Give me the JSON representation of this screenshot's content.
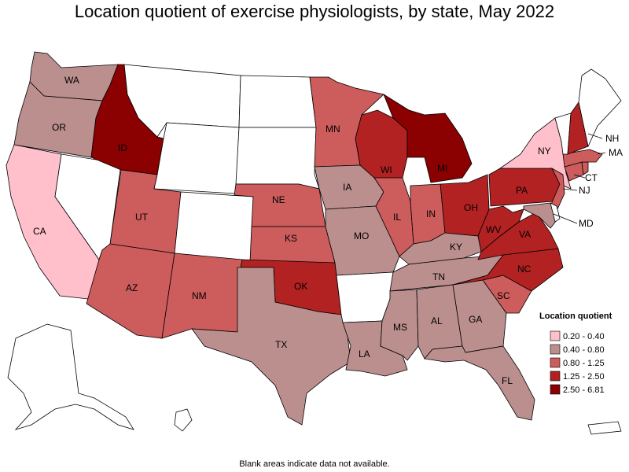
{
  "title": "Location quotient of exercise physiologists, by state, May 2022",
  "footnote": "Blank areas indicate data not available.",
  "legend": {
    "title": "Location quotient",
    "classes": [
      {
        "label": "0.20 - 0.40",
        "color": "#ffc0cb"
      },
      {
        "label": "0.40 - 0.80",
        "color": "#bc8f8f"
      },
      {
        "label": "0.80 - 1.25",
        "color": "#cd5c5c"
      },
      {
        "label": "1.25 - 2.50",
        "color": "#b22222"
      },
      {
        "label": "2.50 - 6.81",
        "color": "#8b0000"
      }
    ]
  },
  "blank_color": "#ffffff",
  "states": [
    {
      "code": "WA",
      "cls": 1
    },
    {
      "code": "OR",
      "cls": 1
    },
    {
      "code": "CA",
      "cls": 0
    },
    {
      "code": "NV",
      "cls": null
    },
    {
      "code": "ID",
      "cls": 4
    },
    {
      "code": "MT",
      "cls": null
    },
    {
      "code": "WY",
      "cls": null
    },
    {
      "code": "UT",
      "cls": 2
    },
    {
      "code": "AZ",
      "cls": 2
    },
    {
      "code": "CO",
      "cls": null
    },
    {
      "code": "NM",
      "cls": 2
    },
    {
      "code": "ND",
      "cls": null
    },
    {
      "code": "SD",
      "cls": null
    },
    {
      "code": "NE",
      "cls": 2
    },
    {
      "code": "KS",
      "cls": 2
    },
    {
      "code": "OK",
      "cls": 3
    },
    {
      "code": "TX",
      "cls": 1
    },
    {
      "code": "MN",
      "cls": 2
    },
    {
      "code": "IA",
      "cls": 1
    },
    {
      "code": "MO",
      "cls": 1
    },
    {
      "code": "AR",
      "cls": null
    },
    {
      "code": "LA",
      "cls": 1
    },
    {
      "code": "WI",
      "cls": 3
    },
    {
      "code": "IL",
      "cls": 2
    },
    {
      "code": "MI",
      "cls": 4
    },
    {
      "code": "IN",
      "cls": 2
    },
    {
      "code": "OH",
      "cls": 3
    },
    {
      "code": "KY",
      "cls": 1
    },
    {
      "code": "TN",
      "cls": 1
    },
    {
      "code": "MS",
      "cls": 1
    },
    {
      "code": "AL",
      "cls": 1
    },
    {
      "code": "GA",
      "cls": 1
    },
    {
      "code": "FL",
      "cls": 1
    },
    {
      "code": "SC",
      "cls": 2
    },
    {
      "code": "NC",
      "cls": 3
    },
    {
      "code": "VA",
      "cls": 3
    },
    {
      "code": "WV",
      "cls": 3
    },
    {
      "code": "PA",
      "cls": 3
    },
    {
      "code": "NY",
      "cls": 0
    },
    {
      "code": "NJ",
      "cls": 2
    },
    {
      "code": "MD",
      "cls": 1
    },
    {
      "code": "DE",
      "cls": null
    },
    {
      "code": "CT",
      "cls": 2
    },
    {
      "code": "MA",
      "cls": 2
    },
    {
      "code": "VT",
      "cls": null
    },
    {
      "code": "NH",
      "cls": 3
    },
    {
      "code": "ME",
      "cls": null
    },
    {
      "code": "RI",
      "cls": 2
    },
    {
      "code": "AK",
      "cls": null
    },
    {
      "code": "HI",
      "cls": null
    },
    {
      "code": "PR",
      "cls": null
    }
  ]
}
